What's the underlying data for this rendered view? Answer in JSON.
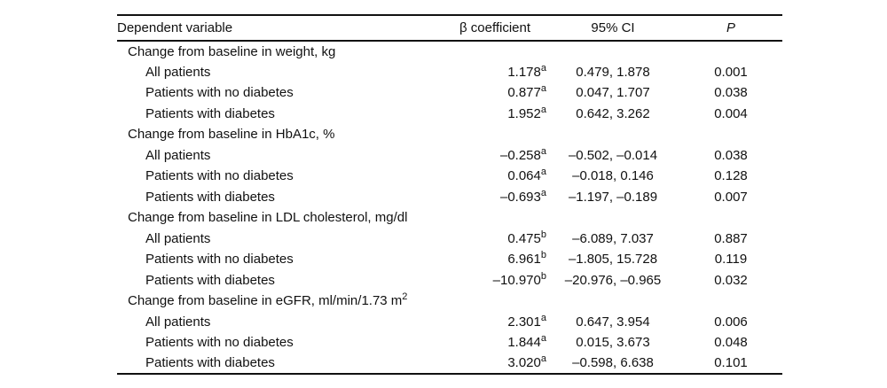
{
  "table": {
    "columns": [
      "Dependent variable",
      "β coefficient",
      "95% CI",
      "P"
    ],
    "sections": [
      {
        "label": "Change from baseline in weight, kg",
        "rows": [
          {
            "label": "All patients",
            "beta": "1.178",
            "beta_sup": "a",
            "ci": "0.479, 1.878",
            "p": "0.001"
          },
          {
            "label": "Patients with no diabetes",
            "beta": "0.877",
            "beta_sup": "a",
            "ci": "0.047, 1.707",
            "p": "0.038"
          },
          {
            "label": "Patients with diabetes",
            "beta": "1.952",
            "beta_sup": "a",
            "ci": "0.642, 3.262",
            "p": "0.004"
          }
        ]
      },
      {
        "label": "Change from baseline in HbA1c, %",
        "rows": [
          {
            "label": "All patients",
            "beta": "–0.258",
            "beta_sup": "a",
            "ci": "–0.502, –0.014",
            "p": "0.038"
          },
          {
            "label": "Patients with no diabetes",
            "beta": "0.064",
            "beta_sup": "a",
            "ci": "–0.018, 0.146",
            "p": "0.128"
          },
          {
            "label": "Patients with diabetes",
            "beta": "–0.693",
            "beta_sup": "a",
            "ci": "–1.197, –0.189",
            "p": "0.007"
          }
        ]
      },
      {
        "label": "Change from baseline in LDL cholesterol, mg/dl",
        "rows": [
          {
            "label": "All patients",
            "beta": "0.475",
            "beta_sup": "b",
            "ci": "–6.089, 7.037",
            "p": "0.887"
          },
          {
            "label": "Patients with no diabetes",
            "beta": "6.961",
            "beta_sup": "b",
            "ci": "–1.805, 15.728",
            "p": "0.119"
          },
          {
            "label": "Patients with diabetes",
            "beta": "–10.970",
            "beta_sup": "b",
            "ci": "–20.976, –0.965",
            "p": "0.032"
          }
        ]
      },
      {
        "label": "Change from baseline in eGFR, ml/min/1.73 m",
        "label_sup": "2",
        "rows": [
          {
            "label": "All patients",
            "beta": "2.301",
            "beta_sup": "a",
            "ci": "0.647, 3.954",
            "p": "0.006"
          },
          {
            "label": "Patients with no diabetes",
            "beta": "1.844",
            "beta_sup": "a",
            "ci": "0.015, 3.673",
            "p": "0.048"
          },
          {
            "label": "Patients with diabetes",
            "beta": "3.020",
            "beta_sup": "a",
            "ci": "–0.598, 6.638",
            "p": "0.101"
          }
        ]
      }
    ]
  }
}
